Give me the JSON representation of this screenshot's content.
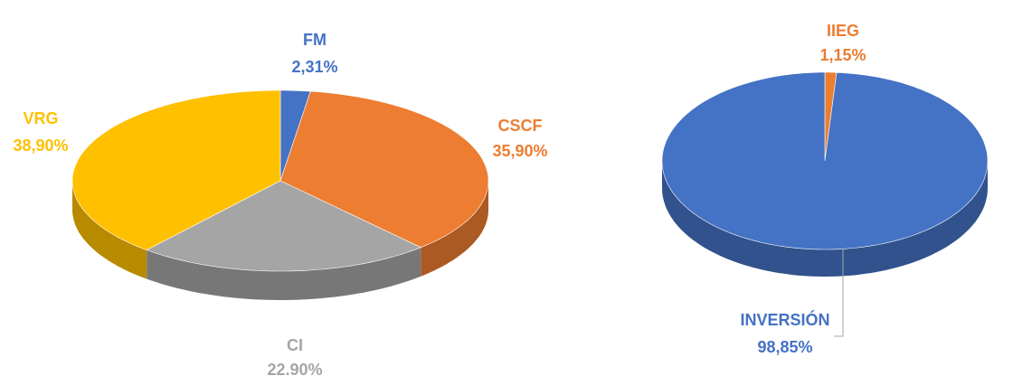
{
  "chart_data": [
    {
      "type": "pie3d",
      "categories": [
        "FM",
        "CSCF",
        "CI",
        "VRG"
      ],
      "values": [
        2.31,
        35.9,
        22.9,
        38.9
      ],
      "value_labels": [
        "2,31%",
        "35,90%",
        "22.90%",
        "38,90%"
      ],
      "colors": [
        "#4472c4",
        "#ed7d31",
        "#a5a5a5",
        "#ffc000"
      ]
    },
    {
      "type": "pie3d",
      "categories": [
        "IIEG",
        "INVERSIÓN"
      ],
      "values": [
        1.15,
        98.85
      ],
      "value_labels": [
        "1,15%",
        "98,85%"
      ],
      "colors": [
        "#ed7d31",
        "#4472c4"
      ]
    }
  ]
}
